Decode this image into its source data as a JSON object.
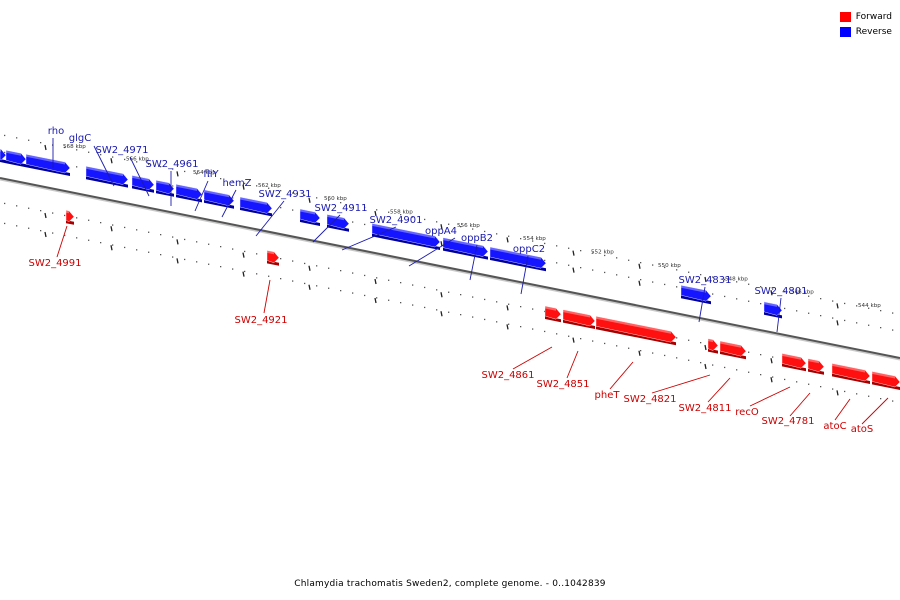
{
  "legend": {
    "forward_label": "Forward",
    "reverse_label": "Reverse",
    "forward_color": "#ff0000",
    "reverse_color": "#0000ff"
  },
  "caption": "Chlamydia trachomatis Sweden2, complete genome. - 0..1042839",
  "forward_label_color": "#cc0000",
  "reverse_label_color": "#1a1ab0",
  "kbp_ticks": [
    "568 kbp",
    "566 kbp",
    "564 kbp",
    "562 kbp",
    "560 kbp",
    "558 kbp",
    "556 kbp",
    "554 kbp",
    "552 kbp",
    "550 kbp",
    "548 kbp",
    "546 kbp",
    "544 kbp"
  ],
  "reverse_genes": [
    "rho",
    "glgC",
    "SW2_4971",
    "SW2_4961",
    "fliY",
    "hemZ",
    "SW2_4931",
    "SW2_4911",
    "SW2_4901",
    "oppA4",
    "oppB2",
    "oppC2",
    "SW2_4831",
    "SW2_4801"
  ],
  "forward_genes": [
    "SW2_4991",
    "SW2_4921",
    "SW2_4861",
    "SW2_4851",
    "pheT",
    "SW2_4821",
    "SW2_4811",
    "recO",
    "SW2_4781",
    "atoC",
    "atoS"
  ]
}
